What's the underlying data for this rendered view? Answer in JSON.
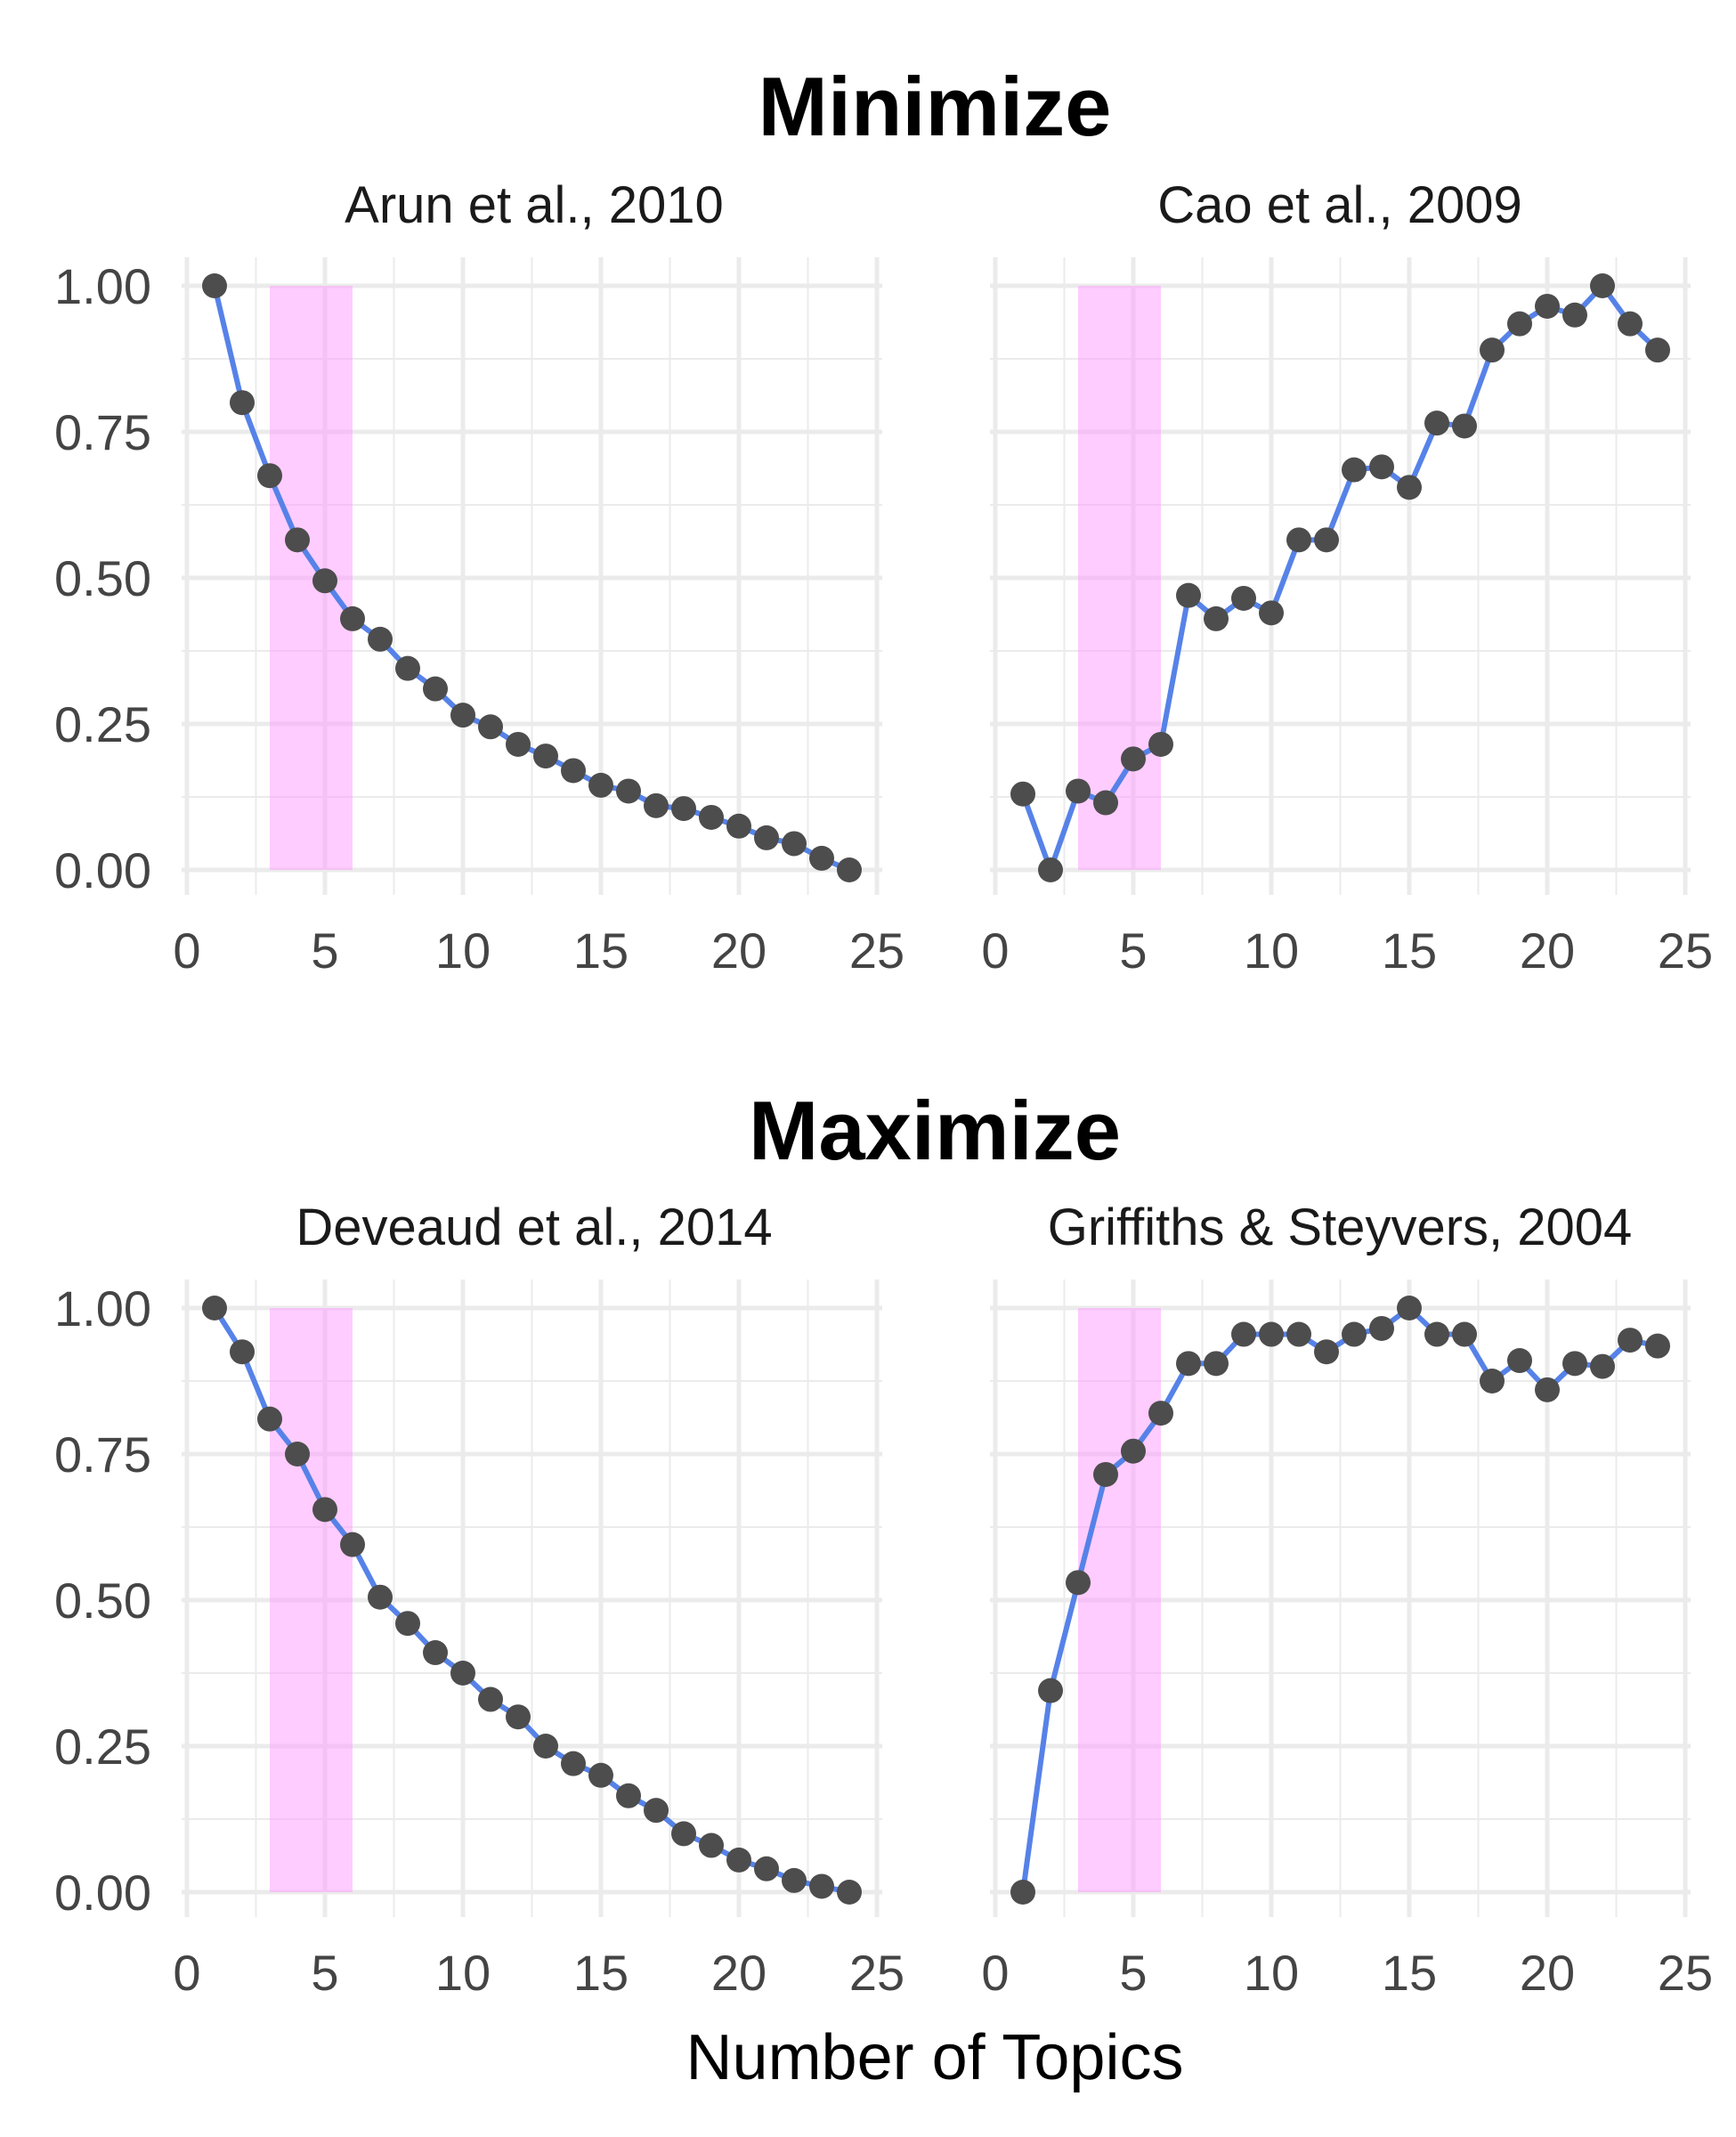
{
  "figure": {
    "x_axis_title": "Number of Topics",
    "colors": {
      "line": "#5682E8",
      "point": "#4D4D4D",
      "highlight": "#FF99FF",
      "grid": "#EBEBEB"
    }
  },
  "groups": [
    {
      "title": "Minimize"
    },
    {
      "title": "Maximize"
    }
  ],
  "chart_data": [
    {
      "type": "line",
      "group": "Minimize",
      "title": "Arun et al., 2010",
      "xlabel": "Number of Topics",
      "ylabel": "",
      "xlim": [
        0,
        25
      ],
      "ylim": [
        0,
        1
      ],
      "x_ticks": [
        0,
        5,
        10,
        15,
        20,
        25
      ],
      "y_ticks": [
        0,
        0.25,
        0.5,
        0.75,
        1
      ],
      "y_tick_labels": [
        "0.00",
        "0.25",
        "0.50",
        "0.75",
        "1.00"
      ],
      "highlight_x_range": [
        3,
        6
      ],
      "grid": true,
      "x": [
        1,
        2,
        3,
        4,
        5,
        6,
        7,
        8,
        9,
        10,
        11,
        12,
        13,
        14,
        15,
        16,
        17,
        18,
        19,
        20,
        21,
        22,
        23,
        24
      ],
      "y": [
        1.0,
        0.8,
        0.675,
        0.565,
        0.495,
        0.43,
        0.395,
        0.345,
        0.31,
        0.265,
        0.245,
        0.215,
        0.195,
        0.17,
        0.145,
        0.135,
        0.11,
        0.105,
        0.09,
        0.075,
        0.055,
        0.045,
        0.02,
        0.0
      ]
    },
    {
      "type": "line",
      "group": "Minimize",
      "title": "Cao et al., 2009",
      "xlabel": "Number of Topics",
      "ylabel": "",
      "xlim": [
        0,
        25
      ],
      "ylim": [
        0,
        1
      ],
      "x_ticks": [
        0,
        5,
        10,
        15,
        20,
        25
      ],
      "y_ticks": [
        0,
        0.25,
        0.5,
        0.75,
        1
      ],
      "y_tick_labels": [
        "0.00",
        "0.25",
        "0.50",
        "0.75",
        "1.00"
      ],
      "highlight_x_range": [
        3,
        6
      ],
      "grid": true,
      "x": [
        1,
        2,
        3,
        4,
        5,
        6,
        7,
        8,
        9,
        10,
        11,
        12,
        13,
        14,
        15,
        16,
        17,
        18,
        19,
        20,
        21,
        22,
        23,
        24
      ],
      "y": [
        0.13,
        0.0,
        0.135,
        0.115,
        0.19,
        0.215,
        0.47,
        0.43,
        0.465,
        0.44,
        0.565,
        0.565,
        0.685,
        0.69,
        0.655,
        0.765,
        0.76,
        0.89,
        0.935,
        0.965,
        0.95,
        1.0,
        0.935,
        0.89
      ]
    },
    {
      "type": "line",
      "group": "Maximize",
      "title": "Deveaud et al., 2014",
      "xlabel": "Number of Topics",
      "ylabel": "",
      "xlim": [
        0,
        25
      ],
      "ylim": [
        0,
        1
      ],
      "x_ticks": [
        0,
        5,
        10,
        15,
        20,
        25
      ],
      "y_ticks": [
        0,
        0.25,
        0.5,
        0.75,
        1
      ],
      "y_tick_labels": [
        "0.00",
        "0.25",
        "0.50",
        "0.75",
        "1.00"
      ],
      "highlight_x_range": [
        3,
        6
      ],
      "grid": true,
      "x": [
        1,
        2,
        3,
        4,
        5,
        6,
        7,
        8,
        9,
        10,
        11,
        12,
        13,
        14,
        15,
        16,
        17,
        18,
        19,
        20,
        21,
        22,
        23,
        24
      ],
      "y": [
        1.0,
        0.925,
        0.81,
        0.75,
        0.655,
        0.595,
        0.505,
        0.46,
        0.41,
        0.375,
        0.33,
        0.3,
        0.25,
        0.22,
        0.2,
        0.165,
        0.14,
        0.1,
        0.08,
        0.055,
        0.04,
        0.02,
        0.01,
        0.0
      ]
    },
    {
      "type": "line",
      "group": "Maximize",
      "title": "Griffiths & Steyvers, 2004",
      "xlabel": "Number of Topics",
      "ylabel": "",
      "xlim": [
        0,
        25
      ],
      "ylim": [
        0,
        1
      ],
      "x_ticks": [
        0,
        5,
        10,
        15,
        20,
        25
      ],
      "y_ticks": [
        0,
        0.25,
        0.5,
        0.75,
        1
      ],
      "y_tick_labels": [
        "0.00",
        "0.25",
        "0.50",
        "0.75",
        "1.00"
      ],
      "highlight_x_range": [
        3,
        6
      ],
      "grid": true,
      "x": [
        1,
        2,
        3,
        4,
        5,
        6,
        7,
        8,
        9,
        10,
        11,
        12,
        13,
        14,
        15,
        16,
        17,
        18,
        19,
        20,
        21,
        22,
        23,
        24
      ],
      "y": [
        0.0,
        0.345,
        0.53,
        0.715,
        0.755,
        0.82,
        0.905,
        0.905,
        0.955,
        0.955,
        0.955,
        0.925,
        0.955,
        0.965,
        1.0,
        0.955,
        0.955,
        0.875,
        0.91,
        0.86,
        0.905,
        0.9,
        0.945,
        0.935
      ]
    }
  ]
}
